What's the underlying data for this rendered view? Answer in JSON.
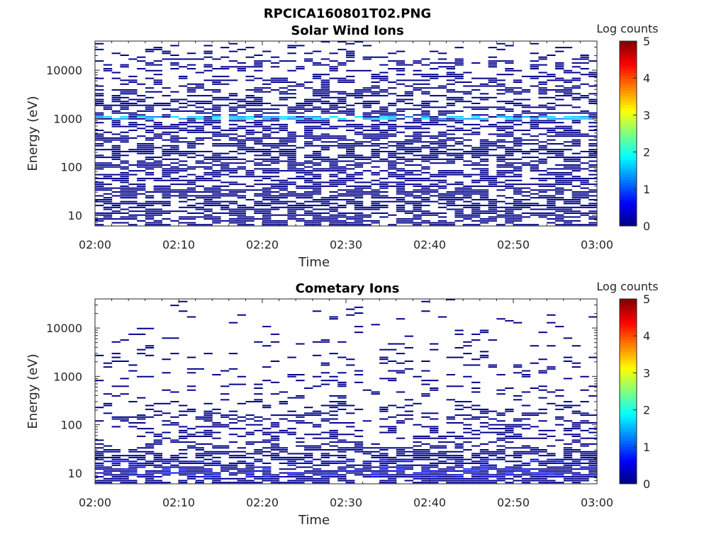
{
  "figure": {
    "filename": "RPCICA160801T02.PNG"
  },
  "chart_data": [
    {
      "type": "heatmap",
      "title": "Solar Wind Ions",
      "xlabel": "Time",
      "ylabel": "Energy (eV)",
      "x_ticks": [
        "02:00",
        "02:10",
        "02:20",
        "02:30",
        "02:40",
        "02:50",
        "03:00"
      ],
      "y_ticks": [
        "10",
        "100",
        "1000",
        "10000"
      ],
      "y_scale": "log",
      "ylim": [
        6,
        40000
      ],
      "xlim": [
        "02:00",
        "03:00"
      ],
      "colorbar": {
        "label": "Log counts",
        "ticks": [
          "0",
          "1",
          "2",
          "3",
          "4",
          "5"
        ],
        "range": [
          0,
          5
        ],
        "colormap": "jet"
      },
      "time_bins": 60,
      "energy_bins": 96,
      "pattern": {
        "seed": 7,
        "fill_probability_by_energy": [
          [
            6,
            0.55
          ],
          [
            30,
            0.6
          ],
          [
            60,
            0.5
          ],
          [
            300,
            0.55
          ],
          [
            3000,
            0.45
          ],
          [
            10000,
            0.3
          ],
          [
            40000,
            0.08
          ]
        ],
        "background_log_counts": 0.05,
        "enhanced_band": {
          "energy_eV": [
            900,
            1100
          ],
          "log_counts": [
            1.2,
            1.8
          ],
          "probability": 0.6
        }
      }
    },
    {
      "type": "heatmap",
      "title": "Cometary Ions",
      "xlabel": "Time",
      "ylabel": "Energy (eV)",
      "x_ticks": [
        "02:00",
        "02:10",
        "02:20",
        "02:30",
        "02:40",
        "02:50",
        "03:00"
      ],
      "y_ticks": [
        "10",
        "100",
        "1000",
        "10000"
      ],
      "y_scale": "log",
      "ylim": [
        6,
        40000
      ],
      "xlim": [
        "02:00",
        "03:00"
      ],
      "colorbar": {
        "label": "Log counts",
        "ticks": [
          "0",
          "1",
          "2",
          "3",
          "4",
          "5"
        ],
        "range": [
          0,
          5
        ],
        "colormap": "jet"
      },
      "time_bins": 60,
      "energy_bins": 96,
      "pattern": {
        "seed": 19,
        "fill_probability_by_energy": [
          [
            6,
            0.65
          ],
          [
            20,
            0.55
          ],
          [
            40,
            0.35
          ],
          [
            150,
            0.3
          ],
          [
            300,
            0.12
          ],
          [
            1000,
            0.1
          ],
          [
            10000,
            0.05
          ],
          [
            40000,
            0.02
          ]
        ],
        "background_log_counts": 0.05,
        "enhanced_band": {
          "energy_eV": [
            8,
            20
          ],
          "log_counts": [
            0.3,
            0.8
          ],
          "probability": 0.25
        }
      }
    }
  ]
}
